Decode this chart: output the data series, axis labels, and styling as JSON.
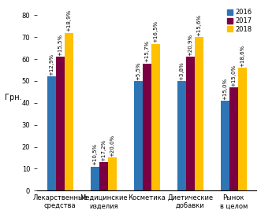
{
  "categories": [
    "Лекарственные\nсредства",
    "Медицинские\nизделия",
    "Косметика",
    "Диетические\nдобавки",
    "Рынок\nв целом"
  ],
  "values_2016": [
    52,
    11,
    50,
    50,
    41
  ],
  "values_2017": [
    61,
    13,
    58,
    61,
    47
  ],
  "values_2018": [
    72,
    15,
    67,
    70,
    56
  ],
  "labels_2016": [
    "+12,9%",
    "+10,5%",
    "+5,5%",
    "+3,8%",
    "+15,0%"
  ],
  "labels_2017": [
    "+15,5%",
    "+17,2%",
    "+15,7%",
    "+20,9%",
    "+15,0%"
  ],
  "labels_2018": [
    "+18,9%",
    "+20,0%",
    "+16,5%",
    "+15,6%",
    "+18,6%"
  ],
  "color_2016": "#2E75B6",
  "color_2017": "#7B0041",
  "color_2018": "#FFC000",
  "ylabel": "Грн.",
  "ylim": [
    0,
    85
  ],
  "yticks": [
    0,
    10,
    20,
    30,
    40,
    50,
    60,
    70,
    80
  ],
  "legend_labels": [
    "2016",
    "2017",
    "2018"
  ],
  "bar_width": 0.2,
  "label_fontsize": 5.0,
  "axis_fontsize": 7,
  "tick_fontsize": 6.0
}
